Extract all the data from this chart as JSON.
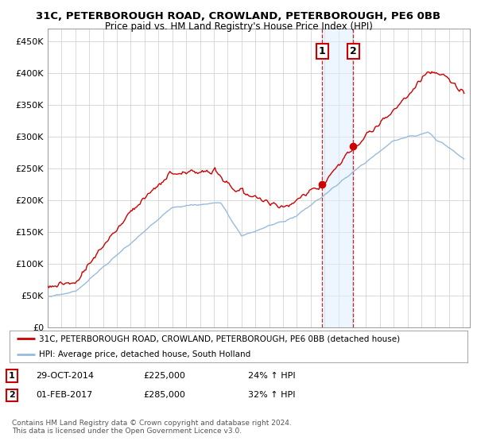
{
  "title1": "31C, PETERBOROUGH ROAD, CROWLAND, PETERBOROUGH, PE6 0BB",
  "title2": "Price paid vs. HM Land Registry's House Price Index (HPI)",
  "ylim": [
    0,
    470000
  ],
  "yticks": [
    0,
    50000,
    100000,
    150000,
    200000,
    250000,
    300000,
    350000,
    400000,
    450000
  ],
  "ytick_labels": [
    "£0",
    "£50K",
    "£100K",
    "£150K",
    "£200K",
    "£250K",
    "£300K",
    "£350K",
    "£400K",
    "£450K"
  ],
  "purchase1_date": "29-OCT-2014",
  "purchase1_price": 225000,
  "purchase1_hpi": "24% ↑ HPI",
  "purchase1_year": 2014.83,
  "purchase2_date": "01-FEB-2017",
  "purchase2_price": 285000,
  "purchase2_hpi": "32% ↑ HPI",
  "purchase2_year": 2017.08,
  "legend_line1": "31C, PETERBOROUGH ROAD, CROWLAND, PETERBOROUGH, PE6 0BB (detached house)",
  "legend_line2": "HPI: Average price, detached house, South Holland",
  "footer": "Contains HM Land Registry data © Crown copyright and database right 2024.\nThis data is licensed under the Open Government Licence v3.0.",
  "line_color_red": "#cc0000",
  "line_color_blue": "#99bbdd",
  "purchase_vline_color": "#cc0000",
  "purchase_fill_color": "#ddeeff",
  "marker_color_red": "#cc0000",
  "box_color": "#cc0000",
  "background_color": "#ffffff",
  "grid_color": "#cccccc",
  "xmin": 1995,
  "xmax": 2025.5
}
